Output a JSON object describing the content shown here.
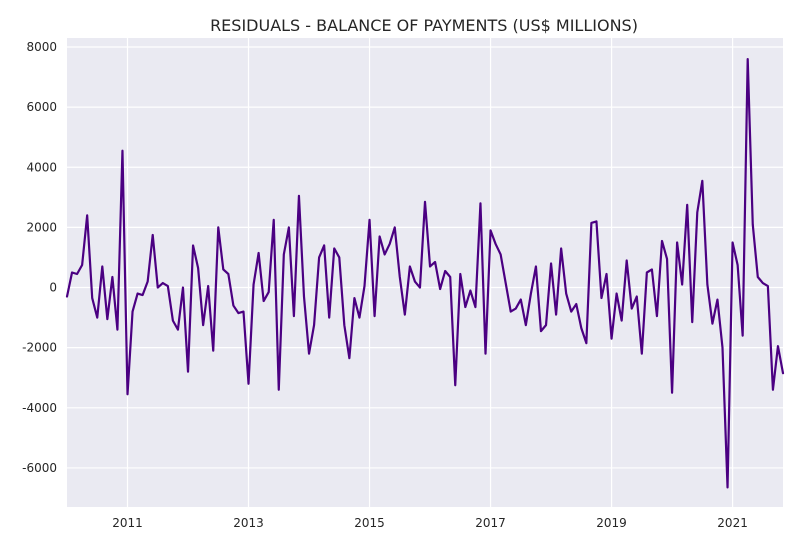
{
  "chart_data": {
    "type": "line",
    "title": "RESIDUALS - BALANCE OF PAYMENTS (US$ MILLIONS)",
    "xlabel": "",
    "ylabel": "",
    "x_start": "2010-01",
    "x_frequency": "monthly",
    "xlim": [
      "2010-01",
      "2021-11"
    ],
    "ylim": [
      -7300,
      8300
    ],
    "x_ticks": [
      "2011",
      "2013",
      "2015",
      "2017",
      "2019",
      "2021"
    ],
    "y_ticks": [
      -6000,
      -4000,
      -2000,
      0,
      2000,
      4000,
      6000,
      8000
    ],
    "grid": true,
    "legend": "none",
    "colors": {
      "line": "#4b0082",
      "plot_background": "#eaeaf2",
      "grid": "#ffffff"
    },
    "series": [
      {
        "values": [
          -300,
          500,
          450,
          750,
          2400,
          -350,
          -1000,
          700,
          -1050,
          350,
          -1400,
          4550,
          -3550,
          -800,
          -200,
          -250,
          200,
          1750,
          0,
          150,
          50,
          -1100,
          -1400,
          0,
          -2800,
          1400,
          650,
          -1250,
          50,
          -2100,
          2000,
          600,
          450,
          -600,
          -850,
          -800,
          -3200,
          100,
          1150,
          -450,
          -150,
          2250,
          -3400,
          1100,
          2000,
          -950,
          3050,
          -300,
          -2200,
          -1250,
          1000,
          1400,
          -1000,
          1300,
          1000,
          -1250,
          -2350,
          -350,
          -1000,
          50,
          2250,
          -950,
          1700,
          1100,
          1450,
          2000,
          350,
          -900,
          700,
          200,
          0,
          2850,
          700,
          850,
          -50,
          550,
          350,
          -3250,
          450,
          -650,
          -100,
          -650,
          2800,
          -2200,
          1900,
          1450,
          1100,
          150,
          -800,
          -700,
          -400,
          -1250,
          -200,
          700,
          -1450,
          -1250,
          800,
          -900,
          1300,
          -200,
          -800,
          -550,
          -1350,
          -1850,
          2150,
          2200,
          -350,
          450,
          -1700,
          -200,
          -1100,
          900,
          -700,
          -300,
          -2200,
          500,
          600,
          -950,
          1550,
          950,
          -3500,
          1500,
          100,
          2750,
          -1150,
          2500,
          3550,
          100,
          -1200,
          -400,
          -2000,
          -6650,
          1500,
          750,
          -1600,
          7600,
          2100,
          350,
          150,
          50,
          -3400,
          -1950,
          -2850
        ]
      }
    ]
  }
}
